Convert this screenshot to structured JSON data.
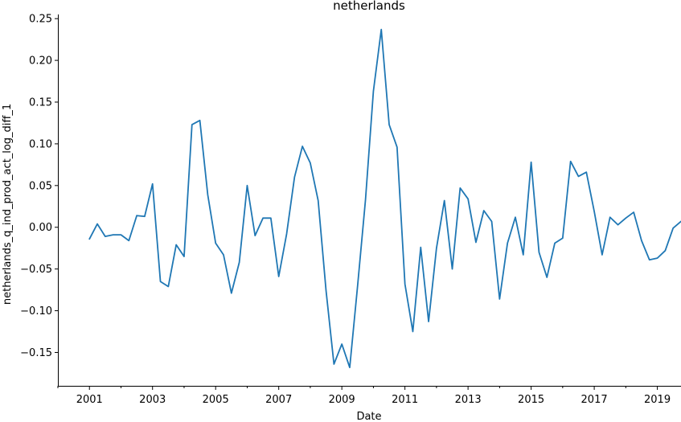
{
  "chart_data": {
    "type": "line",
    "title": "netherlands",
    "xlabel": "Date",
    "ylabel": "netherlands_q_ind_prod_act_log_diff_1",
    "xlim": [
      2000.0,
      2019.75
    ],
    "ylim": [
      -0.19,
      0.255
    ],
    "x_ticks": [
      2001,
      2003,
      2005,
      2007,
      2009,
      2011,
      2013,
      2015,
      2017,
      2019
    ],
    "x_tick_labels": [
      "2001",
      "2003",
      "2005",
      "2007",
      "2009",
      "2011",
      "2013",
      "2015",
      "2017",
      "2019"
    ],
    "y_ticks": [
      -0.15,
      -0.1,
      -0.05,
      0.0,
      0.05,
      0.1,
      0.15,
      0.2,
      0.25
    ],
    "y_tick_labels": [
      "−0.15",
      "−0.10",
      "−0.05",
      "0.00",
      "0.05",
      "0.10",
      "0.15",
      "0.20",
      "0.25"
    ],
    "grid": false,
    "series": [
      {
        "color": "#1f77b4",
        "x": [
          2001.0,
          2001.25,
          2001.5,
          2001.75,
          2002.0,
          2002.25,
          2002.5,
          2002.75,
          2003.0,
          2003.25,
          2003.5,
          2003.75,
          2004.0,
          2004.25,
          2004.5,
          2004.75,
          2005.0,
          2005.25,
          2005.5,
          2005.75,
          2006.0,
          2006.25,
          2006.5,
          2006.75,
          2007.0,
          2007.25,
          2007.5,
          2007.75,
          2008.0,
          2008.25,
          2008.5,
          2008.75,
          2009.0,
          2009.25,
          2009.5,
          2009.75,
          2010.0,
          2010.25,
          2010.5,
          2010.75,
          2011.0,
          2011.25,
          2011.5,
          2011.75,
          2012.0,
          2012.25,
          2012.5,
          2012.75,
          2013.0,
          2013.25,
          2013.5,
          2013.75,
          2014.0,
          2014.25,
          2014.5,
          2014.75,
          2015.0,
          2015.25,
          2015.5,
          2015.75,
          2016.0,
          2016.25,
          2016.5,
          2016.75,
          2017.0,
          2017.25,
          2017.5,
          2017.75,
          2018.0,
          2018.25,
          2018.5,
          2018.75,
          2019.0,
          2019.25,
          2019.5,
          2019.75
        ],
        "values": [
          -0.014,
          0.004,
          -0.011,
          -0.009,
          -0.009,
          -0.016,
          0.014,
          0.013,
          0.052,
          -0.065,
          -0.071,
          -0.021,
          -0.035,
          0.123,
          0.128,
          0.039,
          -0.019,
          -0.033,
          -0.079,
          -0.042,
          0.05,
          -0.01,
          0.011,
          0.011,
          -0.059,
          -0.008,
          0.06,
          0.097,
          0.077,
          0.032,
          -0.076,
          -0.164,
          -0.14,
          -0.168,
          -0.07,
          0.033,
          0.163,
          0.237,
          0.123,
          0.096,
          -0.068,
          -0.125,
          -0.024,
          -0.113,
          -0.025,
          0.032,
          -0.05,
          0.047,
          0.034,
          -0.018,
          0.02,
          0.007,
          -0.086,
          -0.019,
          0.012,
          -0.033,
          0.078,
          -0.03,
          -0.06,
          -0.019,
          -0.013,
          0.079,
          0.061,
          0.066,
          0.019,
          -0.033,
          0.012,
          0.003,
          0.011,
          0.018,
          -0.016,
          -0.039,
          -0.037,
          -0.028,
          -0.001,
          0.007
        ]
      }
    ]
  }
}
